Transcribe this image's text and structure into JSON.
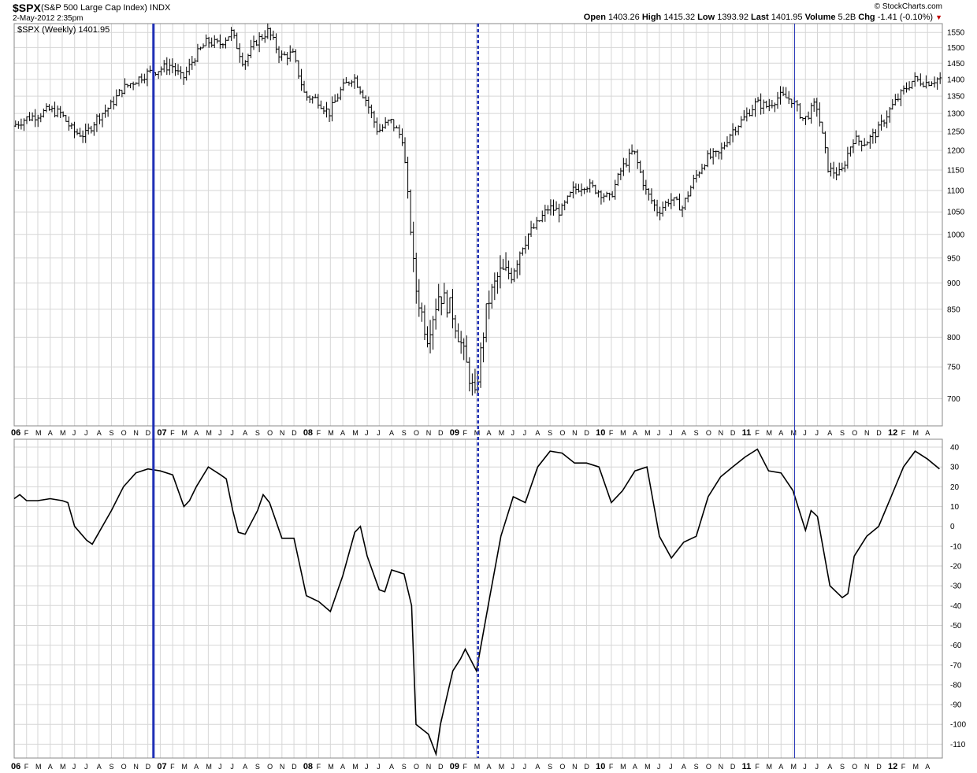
{
  "header": {
    "symbol": "$SPX",
    "name": "(S&P 500 Large Cap Index)",
    "exchange": "INDX",
    "datetime": "2-May-2012 2:35pm",
    "brand": "© StockCharts.com",
    "open_label": "Open",
    "open": "1403.26",
    "high_label": "High",
    "high": "1415.32",
    "low_label": "Low",
    "low": "1393.92",
    "last_label": "Last",
    "last": "1401.95",
    "volume_label": "Volume",
    "volume": "5.2B",
    "chg_label": "Chg",
    "chg": "-1.41 (-0.10%)",
    "chg_arrow": "▼"
  },
  "legend": "$SPX (Weekly) 1401.95",
  "colors": {
    "vline": "#1f2fb5",
    "price": "#000000",
    "grid": "#d6d6d6",
    "accent_down": "#c00000"
  },
  "chart_data": [
    {
      "type": "ohlc",
      "name": "$SPX (Weekly)",
      "scale": "log",
      "ylim": [
        660,
        1580
      ],
      "y_ticks": [
        700,
        750,
        800,
        850,
        900,
        950,
        1000,
        1050,
        1100,
        1150,
        1200,
        1250,
        1300,
        1350,
        1400,
        1450,
        1500,
        1550
      ],
      "x_range": [
        "2006-01",
        "2012-05"
      ],
      "x_tick_labels": [
        "06",
        "F",
        "M",
        "A",
        "M",
        "J",
        "J",
        "A",
        "S",
        "O",
        "N",
        "D",
        "07",
        "F",
        "M",
        "A",
        "M",
        "J",
        "J",
        "A",
        "S",
        "O",
        "N",
        "D",
        "08",
        "F",
        "M",
        "A",
        "M",
        "J",
        "J",
        "A",
        "S",
        "O",
        "N",
        "D",
        "09",
        "F",
        "M",
        "A",
        "M",
        "J",
        "J",
        "A",
        "S",
        "O",
        "N",
        "D",
        "10",
        "F",
        "M",
        "A",
        "M",
        "J",
        "J",
        "A",
        "S",
        "O",
        "N",
        "D",
        "11",
        "F",
        "M",
        "A",
        "M",
        "J",
        "J",
        "A",
        "S",
        "O",
        "N",
        "D",
        "12",
        "F",
        "M",
        "A"
      ],
      "close_path": [
        [
          "2006-01",
          1265
        ],
        [
          "2006-02",
          1285
        ],
        [
          "2006-03",
          1295
        ],
        [
          "2006-04",
          1310
        ],
        [
          "2006-05",
          1300
        ],
        [
          "2006-06",
          1250
        ],
        [
          "2006-07",
          1240
        ],
        [
          "2006-08",
          1290
        ],
        [
          "2006-09",
          1320
        ],
        [
          "2006-10",
          1370
        ],
        [
          "2006-11",
          1395
        ],
        [
          "2006-12",
          1418
        ],
        [
          "2007-01",
          1430
        ],
        [
          "2007-02",
          1445
        ],
        [
          "2007-03",
          1400
        ],
        [
          "2007-04",
          1470
        ],
        [
          "2007-05",
          1520
        ],
        [
          "2007-06",
          1510
        ],
        [
          "2007-07",
          1550
        ],
        [
          "2007-08",
          1450
        ],
        [
          "2007-09",
          1520
        ],
        [
          "2007-10",
          1555
        ],
        [
          "2007-11",
          1470
        ],
        [
          "2007-12",
          1480
        ],
        [
          "2008-01",
          1350
        ],
        [
          "2008-02",
          1340
        ],
        [
          "2008-03",
          1300
        ],
        [
          "2008-04",
          1370
        ],
        [
          "2008-05",
          1410
        ],
        [
          "2008-06",
          1340
        ],
        [
          "2008-07",
          1250
        ],
        [
          "2008-08",
          1280
        ],
        [
          "2008-09",
          1230
        ],
        [
          "2008-10",
          900
        ],
        [
          "2008-11",
          800
        ],
        [
          "2008-12",
          880
        ],
        [
          "2009-01",
          850
        ],
        [
          "2009-02",
          770
        ],
        [
          "2009-03",
          700
        ],
        [
          "2009-04",
          860
        ],
        [
          "2009-05",
          920
        ],
        [
          "2009-06",
          920
        ],
        [
          "2009-07",
          990
        ],
        [
          "2009-08",
          1020
        ],
        [
          "2009-09",
          1060
        ],
        [
          "2009-10",
          1050
        ],
        [
          "2009-11",
          1100
        ],
        [
          "2009-12",
          1115
        ],
        [
          "2010-01",
          1100
        ],
        [
          "2010-02",
          1080
        ],
        [
          "2010-03",
          1150
        ],
        [
          "2010-04",
          1200
        ],
        [
          "2010-05",
          1100
        ],
        [
          "2010-06",
          1050
        ],
        [
          "2010-07",
          1080
        ],
        [
          "2010-08",
          1060
        ],
        [
          "2010-09",
          1130
        ],
        [
          "2010-10",
          1180
        ],
        [
          "2010-11",
          1190
        ],
        [
          "2010-12",
          1250
        ],
        [
          "2011-01",
          1285
        ],
        [
          "2011-02",
          1330
        ],
        [
          "2011-03",
          1320
        ],
        [
          "2011-04",
          1350
        ],
        [
          "2011-05",
          1340
        ],
        [
          "2011-06",
          1280
        ],
        [
          "2011-07",
          1330
        ],
        [
          "2011-08",
          1150
        ],
        [
          "2011-09",
          1140
        ],
        [
          "2011-10",
          1230
        ],
        [
          "2011-11",
          1220
        ],
        [
          "2011-12",
          1250
        ],
        [
          "2012-01",
          1310
        ],
        [
          "2012-02",
          1360
        ],
        [
          "2012-03",
          1400
        ],
        [
          "2012-04",
          1390
        ],
        [
          "2012-05",
          1402
        ]
      ]
    },
    {
      "type": "line",
      "name": "oscillator",
      "ylim": [
        -117,
        44
      ],
      "y_ticks": [
        40,
        30,
        20,
        10,
        0,
        -10,
        -20,
        -30,
        -40,
        -50,
        -60,
        -70,
        -80,
        -90,
        -100,
        -110
      ],
      "x_tick_labels": [
        "06",
        "F",
        "M",
        "A",
        "M",
        "J",
        "J",
        "A",
        "S",
        "O",
        "N",
        "D",
        "07",
        "F",
        "M",
        "A",
        "M",
        "J",
        "J",
        "A",
        "S",
        "O",
        "N",
        "D",
        "08",
        "F",
        "M",
        "A",
        "M",
        "J",
        "J",
        "A",
        "S",
        "O",
        "N",
        "D",
        "09",
        "F",
        "M",
        "A",
        "M",
        "J",
        "J",
        "A",
        "S",
        "O",
        "N",
        "D",
        "10",
        "F",
        "M",
        "A",
        "M",
        "J",
        "J",
        "A",
        "S",
        "O",
        "N",
        "D",
        "11",
        "F",
        "M",
        "A",
        "M",
        "J",
        "J",
        "A",
        "S",
        "O",
        "N",
        "D",
        "12",
        "F",
        "M",
        "A"
      ],
      "points": [
        [
          "2006-01",
          14
        ],
        [
          "2006-01-15",
          16
        ],
        [
          "2006-02",
          13
        ],
        [
          "2006-03",
          13
        ],
        [
          "2006-04",
          14
        ],
        [
          "2006-05",
          13
        ],
        [
          "2006-05-15",
          12
        ],
        [
          "2006-06",
          0
        ],
        [
          "2006-07",
          -7
        ],
        [
          "2006-07-15",
          -9
        ],
        [
          "2006-08",
          -3
        ],
        [
          "2006-09",
          8
        ],
        [
          "2006-10",
          20
        ],
        [
          "2006-11",
          27
        ],
        [
          "2006-12",
          29
        ],
        [
          "2007-01",
          28
        ],
        [
          "2007-02",
          26
        ],
        [
          "2007-03",
          10
        ],
        [
          "2007-03-15",
          13
        ],
        [
          "2007-04",
          20
        ],
        [
          "2007-05",
          30
        ],
        [
          "2007-06",
          26
        ],
        [
          "2007-06-15",
          24
        ],
        [
          "2007-07",
          8
        ],
        [
          "2007-07-15",
          -3
        ],
        [
          "2007-08",
          -4
        ],
        [
          "2007-09",
          8
        ],
        [
          "2007-09-15",
          16
        ],
        [
          "2007-10",
          12
        ],
        [
          "2007-11",
          -6
        ],
        [
          "2007-12",
          -6
        ],
        [
          "2008-01",
          -35
        ],
        [
          "2008-02",
          -38
        ],
        [
          "2008-03",
          -43
        ],
        [
          "2008-04",
          -25
        ],
        [
          "2008-05",
          -3
        ],
        [
          "2008-05-15",
          0
        ],
        [
          "2008-06",
          -15
        ],
        [
          "2008-07",
          -32
        ],
        [
          "2008-07-15",
          -33
        ],
        [
          "2008-08",
          -22
        ],
        [
          "2008-09",
          -24
        ],
        [
          "2008-09-20",
          -40
        ],
        [
          "2008-10",
          -100
        ],
        [
          "2008-11",
          -105
        ],
        [
          "2008-11-20",
          -115
        ],
        [
          "2008-12",
          -100
        ],
        [
          "2009-01",
          -73
        ],
        [
          "2009-01-20",
          -67
        ],
        [
          "2009-02",
          -62
        ],
        [
          "2009-03",
          -73
        ],
        [
          "2009-04",
          -38
        ],
        [
          "2009-05",
          -5
        ],
        [
          "2009-06",
          15
        ],
        [
          "2009-07",
          12
        ],
        [
          "2009-08",
          30
        ],
        [
          "2009-09",
          38
        ],
        [
          "2009-10",
          37
        ],
        [
          "2009-11",
          32
        ],
        [
          "2009-12",
          32
        ],
        [
          "2010-01",
          30
        ],
        [
          "2010-02",
          12
        ],
        [
          "2010-03",
          18
        ],
        [
          "2010-04",
          28
        ],
        [
          "2010-05",
          30
        ],
        [
          "2010-06",
          -5
        ],
        [
          "2010-07",
          -16
        ],
        [
          "2010-08",
          -8
        ],
        [
          "2010-09",
          -5
        ],
        [
          "2010-10",
          15
        ],
        [
          "2010-11",
          25
        ],
        [
          "2010-12",
          30
        ],
        [
          "2011-01",
          35
        ],
        [
          "2011-02",
          39
        ],
        [
          "2011-03",
          28
        ],
        [
          "2011-04",
          27
        ],
        [
          "2011-05",
          18
        ],
        [
          "2011-06",
          -2
        ],
        [
          "2011-06-15",
          8
        ],
        [
          "2011-07",
          5
        ],
        [
          "2011-08",
          -30
        ],
        [
          "2011-09",
          -36
        ],
        [
          "2011-09-15",
          -34
        ],
        [
          "2011-10",
          -15
        ],
        [
          "2011-11",
          -5
        ],
        [
          "2011-12",
          0
        ],
        [
          "2012-01",
          15
        ],
        [
          "2012-02",
          30
        ],
        [
          "2012-03",
          38
        ],
        [
          "2012-04",
          34
        ],
        [
          "2012-05",
          29
        ]
      ]
    }
  ],
  "vlines": [
    {
      "date": "2006-12-15",
      "style": "thick"
    },
    {
      "date": "2009-03-05",
      "style": "dashed"
    },
    {
      "date": "2011-05-05",
      "style": "thin"
    }
  ]
}
